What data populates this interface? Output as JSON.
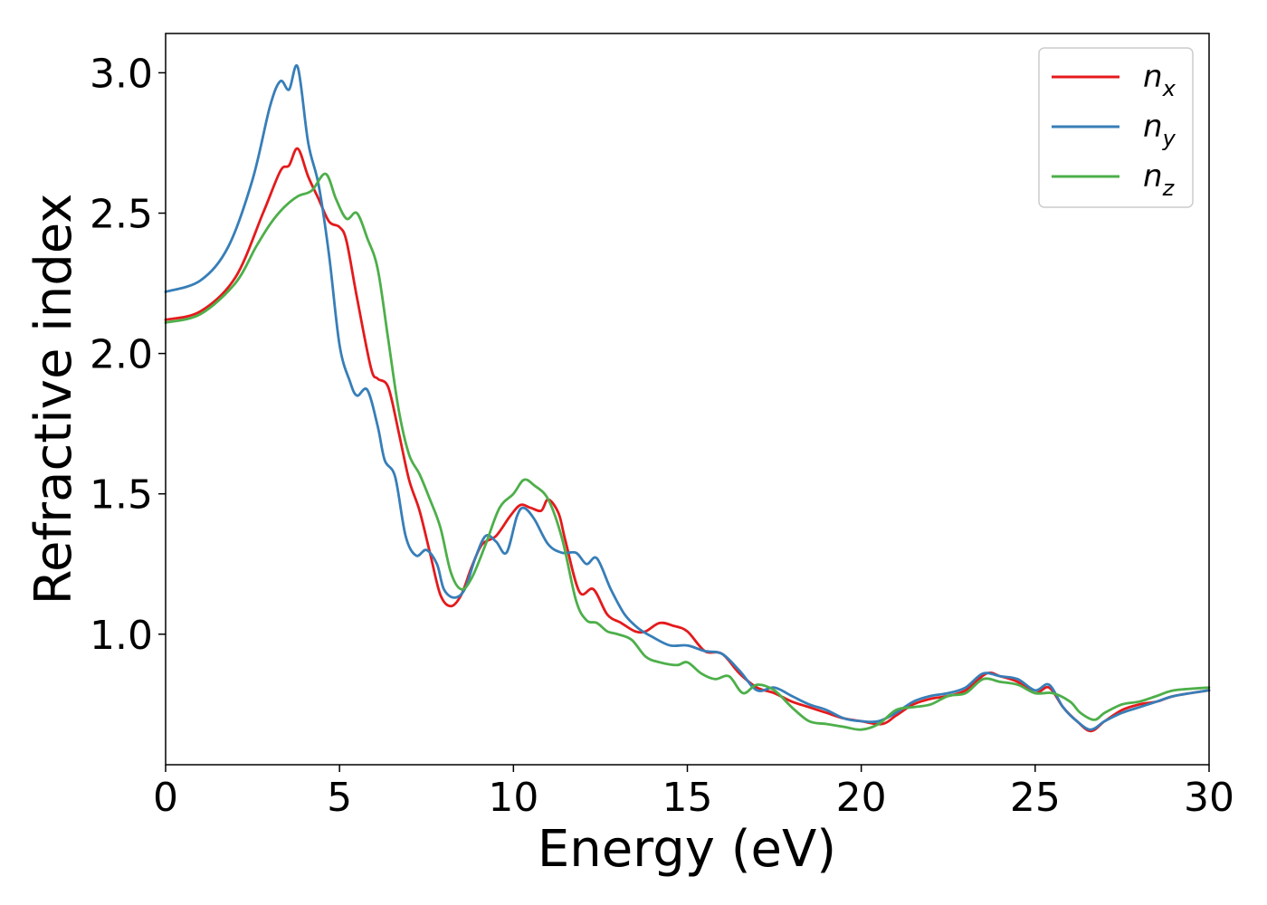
{
  "chart_data": {
    "type": "line",
    "xlabel": "Energy (eV)",
    "ylabel": "Refractive index",
    "xlim": [
      0,
      30
    ],
    "ylim": [
      0.535,
      3.14
    ],
    "xticks": [
      "0",
      "5",
      "10",
      "15",
      "20",
      "25",
      "30"
    ],
    "yticks": [
      "1.0",
      "1.5",
      "2.0",
      "2.5",
      "3.0"
    ],
    "grid": false,
    "legend_position": "top-right",
    "series": [
      {
        "name": "n",
        "subscript": "x",
        "color": "#e41a1c",
        "points": [
          [
            0,
            2.12
          ],
          [
            1,
            2.15
          ],
          [
            2,
            2.27
          ],
          [
            2.8,
            2.5
          ],
          [
            3.3,
            2.65
          ],
          [
            3.55,
            2.67
          ],
          [
            3.8,
            2.73
          ],
          [
            4.1,
            2.63
          ],
          [
            4.4,
            2.55
          ],
          [
            4.7,
            2.47
          ],
          [
            5.0,
            2.45
          ],
          [
            5.2,
            2.4
          ],
          [
            5.5,
            2.2
          ],
          [
            5.9,
            1.95
          ],
          [
            6.1,
            1.91
          ],
          [
            6.4,
            1.88
          ],
          [
            6.7,
            1.72
          ],
          [
            7.0,
            1.55
          ],
          [
            7.3,
            1.44
          ],
          [
            7.6,
            1.29
          ],
          [
            7.9,
            1.14
          ],
          [
            8.2,
            1.1
          ],
          [
            8.5,
            1.14
          ],
          [
            8.8,
            1.24
          ],
          [
            9.1,
            1.32
          ],
          [
            9.5,
            1.35
          ],
          [
            9.9,
            1.42
          ],
          [
            10.2,
            1.46
          ],
          [
            10.5,
            1.45
          ],
          [
            10.8,
            1.44
          ],
          [
            11.0,
            1.48
          ],
          [
            11.3,
            1.43
          ],
          [
            11.5,
            1.33
          ],
          [
            11.9,
            1.15
          ],
          [
            12.3,
            1.16
          ],
          [
            12.7,
            1.07
          ],
          [
            13.1,
            1.04
          ],
          [
            13.5,
            1.01
          ],
          [
            13.8,
            1.01
          ],
          [
            14.2,
            1.04
          ],
          [
            14.6,
            1.03
          ],
          [
            15.0,
            1.01
          ],
          [
            15.5,
            0.94
          ],
          [
            16.0,
            0.93
          ],
          [
            16.5,
            0.86
          ],
          [
            17.0,
            0.81
          ],
          [
            17.5,
            0.79
          ],
          [
            18.0,
            0.76
          ],
          [
            18.5,
            0.74
          ],
          [
            19.0,
            0.72
          ],
          [
            19.5,
            0.7
          ],
          [
            20.0,
            0.69
          ],
          [
            20.6,
            0.68
          ],
          [
            21.0,
            0.71
          ],
          [
            21.5,
            0.75
          ],
          [
            22.0,
            0.77
          ],
          [
            22.5,
            0.78
          ],
          [
            23.0,
            0.8
          ],
          [
            23.6,
            0.86
          ],
          [
            24.0,
            0.85
          ],
          [
            24.5,
            0.83
          ],
          [
            25.0,
            0.79
          ],
          [
            25.4,
            0.81
          ],
          [
            25.8,
            0.74
          ],
          [
            26.2,
            0.69
          ],
          [
            26.6,
            0.655
          ],
          [
            27.0,
            0.69
          ],
          [
            27.5,
            0.73
          ],
          [
            28.0,
            0.75
          ],
          [
            28.5,
            0.76
          ],
          [
            29.0,
            0.78
          ],
          [
            30.0,
            0.8
          ]
        ]
      },
      {
        "name": "n",
        "subscript": "y",
        "color": "#377eb8",
        "points": [
          [
            0,
            2.22
          ],
          [
            1,
            2.26
          ],
          [
            1.8,
            2.38
          ],
          [
            2.5,
            2.62
          ],
          [
            3.0,
            2.88
          ],
          [
            3.3,
            2.97
          ],
          [
            3.55,
            2.94
          ],
          [
            3.8,
            3.02
          ],
          [
            4.1,
            2.75
          ],
          [
            4.4,
            2.6
          ],
          [
            4.7,
            2.35
          ],
          [
            5.0,
            2.03
          ],
          [
            5.3,
            1.9
          ],
          [
            5.5,
            1.85
          ],
          [
            5.8,
            1.87
          ],
          [
            6.1,
            1.74
          ],
          [
            6.3,
            1.62
          ],
          [
            6.6,
            1.56
          ],
          [
            6.9,
            1.35
          ],
          [
            7.2,
            1.28
          ],
          [
            7.5,
            1.3
          ],
          [
            7.8,
            1.25
          ],
          [
            8.0,
            1.16
          ],
          [
            8.3,
            1.13
          ],
          [
            8.6,
            1.16
          ],
          [
            8.9,
            1.27
          ],
          [
            9.2,
            1.35
          ],
          [
            9.5,
            1.33
          ],
          [
            9.8,
            1.29
          ],
          [
            10.1,
            1.42
          ],
          [
            10.3,
            1.45
          ],
          [
            10.6,
            1.41
          ],
          [
            11.0,
            1.32
          ],
          [
            11.4,
            1.29
          ],
          [
            11.8,
            1.29
          ],
          [
            12.1,
            1.25
          ],
          [
            12.4,
            1.27
          ],
          [
            12.8,
            1.16
          ],
          [
            13.2,
            1.07
          ],
          [
            13.6,
            1.02
          ],
          [
            14.0,
            0.99
          ],
          [
            14.5,
            0.96
          ],
          [
            15.0,
            0.96
          ],
          [
            15.5,
            0.94
          ],
          [
            16.0,
            0.93
          ],
          [
            16.5,
            0.87
          ],
          [
            17.0,
            0.8
          ],
          [
            17.5,
            0.81
          ],
          [
            18.0,
            0.78
          ],
          [
            18.5,
            0.75
          ],
          [
            19.0,
            0.73
          ],
          [
            19.5,
            0.7
          ],
          [
            20.0,
            0.69
          ],
          [
            20.5,
            0.69
          ],
          [
            21.0,
            0.72
          ],
          [
            21.5,
            0.76
          ],
          [
            22.0,
            0.78
          ],
          [
            22.5,
            0.79
          ],
          [
            23.0,
            0.81
          ],
          [
            23.5,
            0.86
          ],
          [
            24.0,
            0.85
          ],
          [
            24.5,
            0.84
          ],
          [
            25.0,
            0.8
          ],
          [
            25.4,
            0.82
          ],
          [
            25.8,
            0.74
          ],
          [
            26.2,
            0.69
          ],
          [
            26.6,
            0.66
          ],
          [
            27.0,
            0.69
          ],
          [
            27.5,
            0.72
          ],
          [
            28.0,
            0.74
          ],
          [
            28.5,
            0.76
          ],
          [
            29.0,
            0.78
          ],
          [
            30.0,
            0.8
          ]
        ]
      },
      {
        "name": "n",
        "subscript": "z",
        "color": "#4daf4a",
        "points": [
          [
            0,
            2.11
          ],
          [
            1,
            2.14
          ],
          [
            2,
            2.25
          ],
          [
            2.6,
            2.38
          ],
          [
            3.0,
            2.46
          ],
          [
            3.4,
            2.52
          ],
          [
            3.8,
            2.56
          ],
          [
            4.2,
            2.58
          ],
          [
            4.6,
            2.64
          ],
          [
            4.9,
            2.55
          ],
          [
            5.2,
            2.48
          ],
          [
            5.5,
            2.5
          ],
          [
            5.8,
            2.41
          ],
          [
            6.1,
            2.3
          ],
          [
            6.4,
            2.05
          ],
          [
            6.7,
            1.8
          ],
          [
            7.0,
            1.64
          ],
          [
            7.3,
            1.57
          ],
          [
            7.6,
            1.48
          ],
          [
            7.9,
            1.38
          ],
          [
            8.2,
            1.22
          ],
          [
            8.5,
            1.16
          ],
          [
            8.8,
            1.2
          ],
          [
            9.2,
            1.32
          ],
          [
            9.6,
            1.45
          ],
          [
            10.0,
            1.5
          ],
          [
            10.3,
            1.55
          ],
          [
            10.6,
            1.53
          ],
          [
            11.0,
            1.48
          ],
          [
            11.4,
            1.34
          ],
          [
            11.8,
            1.12
          ],
          [
            12.1,
            1.05
          ],
          [
            12.4,
            1.04
          ],
          [
            12.7,
            1.01
          ],
          [
            13.0,
            1.0
          ],
          [
            13.4,
            0.98
          ],
          [
            13.8,
            0.92
          ],
          [
            14.2,
            0.9
          ],
          [
            14.7,
            0.89
          ],
          [
            15.0,
            0.9
          ],
          [
            15.4,
            0.86
          ],
          [
            15.8,
            0.84
          ],
          [
            16.2,
            0.85
          ],
          [
            16.6,
            0.79
          ],
          [
            17.0,
            0.82
          ],
          [
            17.5,
            0.8
          ],
          [
            18.0,
            0.74
          ],
          [
            18.5,
            0.69
          ],
          [
            19.0,
            0.68
          ],
          [
            19.5,
            0.67
          ],
          [
            20.0,
            0.66
          ],
          [
            20.5,
            0.68
          ],
          [
            21.0,
            0.73
          ],
          [
            21.5,
            0.74
          ],
          [
            22.0,
            0.75
          ],
          [
            22.5,
            0.78
          ],
          [
            23.0,
            0.79
          ],
          [
            23.5,
            0.84
          ],
          [
            24.0,
            0.83
          ],
          [
            24.5,
            0.82
          ],
          [
            25.0,
            0.79
          ],
          [
            25.5,
            0.79
          ],
          [
            26.0,
            0.76
          ],
          [
            26.3,
            0.72
          ],
          [
            26.7,
            0.695
          ],
          [
            27.0,
            0.72
          ],
          [
            27.5,
            0.75
          ],
          [
            28.0,
            0.76
          ],
          [
            28.5,
            0.78
          ],
          [
            29.0,
            0.8
          ],
          [
            30.0,
            0.81
          ]
        ]
      }
    ]
  }
}
